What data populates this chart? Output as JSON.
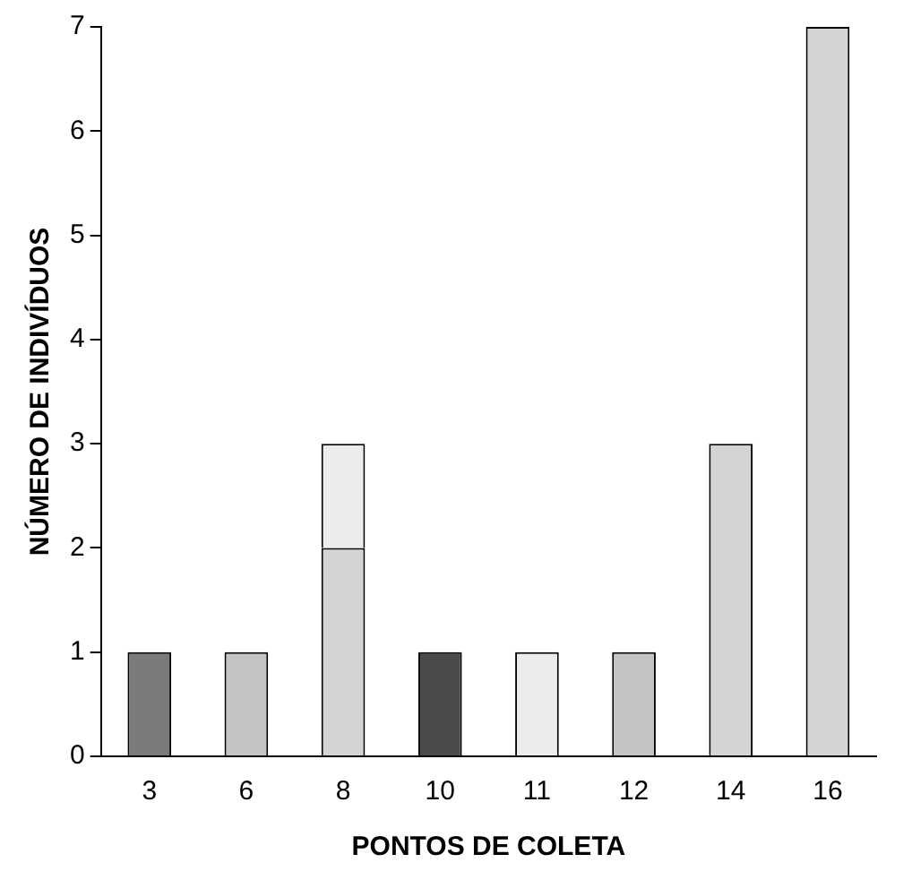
{
  "chart_data": {
    "type": "bar",
    "xlabel": "PONTOS DE COLETA",
    "ylabel": "NÚMERO DE INDIVÍDUOS",
    "categories": [
      "3",
      "6",
      "8",
      "10",
      "11",
      "12",
      "14",
      "16"
    ],
    "stacked": true,
    "ylim": [
      0,
      7
    ],
    "yticks": [
      0,
      1,
      2,
      3,
      4,
      5,
      6,
      7
    ],
    "grid": false,
    "legend": false,
    "series": [
      {
        "color": "#7a7a7a",
        "values": [
          1,
          null,
          null,
          null,
          null,
          null,
          null,
          null
        ]
      },
      {
        "color": "#c4c4c4",
        "values": [
          null,
          1,
          null,
          null,
          null,
          1,
          null,
          null
        ]
      },
      {
        "color": "#d4d4d4",
        "values": [
          null,
          null,
          2,
          null,
          null,
          null,
          3,
          7
        ]
      },
      {
        "color": "#ececec",
        "values": [
          null,
          null,
          1,
          null,
          1,
          null,
          null,
          null
        ]
      },
      {
        "color": "#4a4a4a",
        "values": [
          null,
          null,
          null,
          1,
          null,
          null,
          null,
          null
        ]
      }
    ]
  }
}
